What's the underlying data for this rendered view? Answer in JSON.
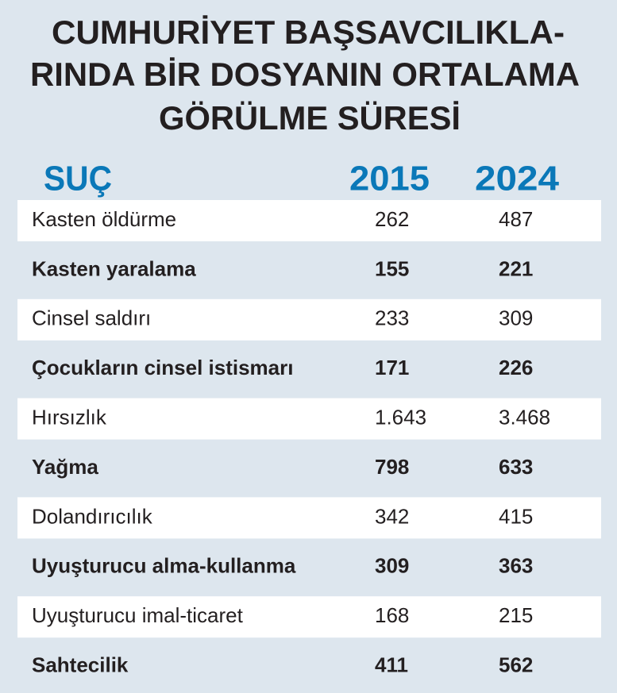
{
  "title": {
    "lines": [
      "CUMHURİYET BAŞSAVCILIKLA-",
      "RINDA BİR DOSYANIN ORTALAMA",
      "GÖRÜLME SÜRESİ"
    ]
  },
  "table": {
    "header": [
      "SUÇ",
      "2015",
      "2024"
    ],
    "rows": [
      [
        "Kasten öldürme",
        "262",
        "487"
      ],
      [
        "Kasten yaralama",
        "155",
        "221"
      ],
      [
        "Cinsel saldırı",
        "233",
        "309"
      ],
      [
        "Çocukların cinsel istismarı",
        "171",
        "226"
      ],
      [
        "Hırsızlık",
        "1.643",
        "3.468"
      ],
      [
        "Yağma",
        "798",
        "633"
      ],
      [
        "Dolandırıcılık",
        "342",
        "415"
      ],
      [
        "Uyuşturucu alma-kullanma",
        "309",
        "363"
      ],
      [
        "Uyuşturucu imal-ticaret",
        "168",
        "215"
      ],
      [
        "Sahtecilik",
        "411",
        "562"
      ]
    ]
  }
}
